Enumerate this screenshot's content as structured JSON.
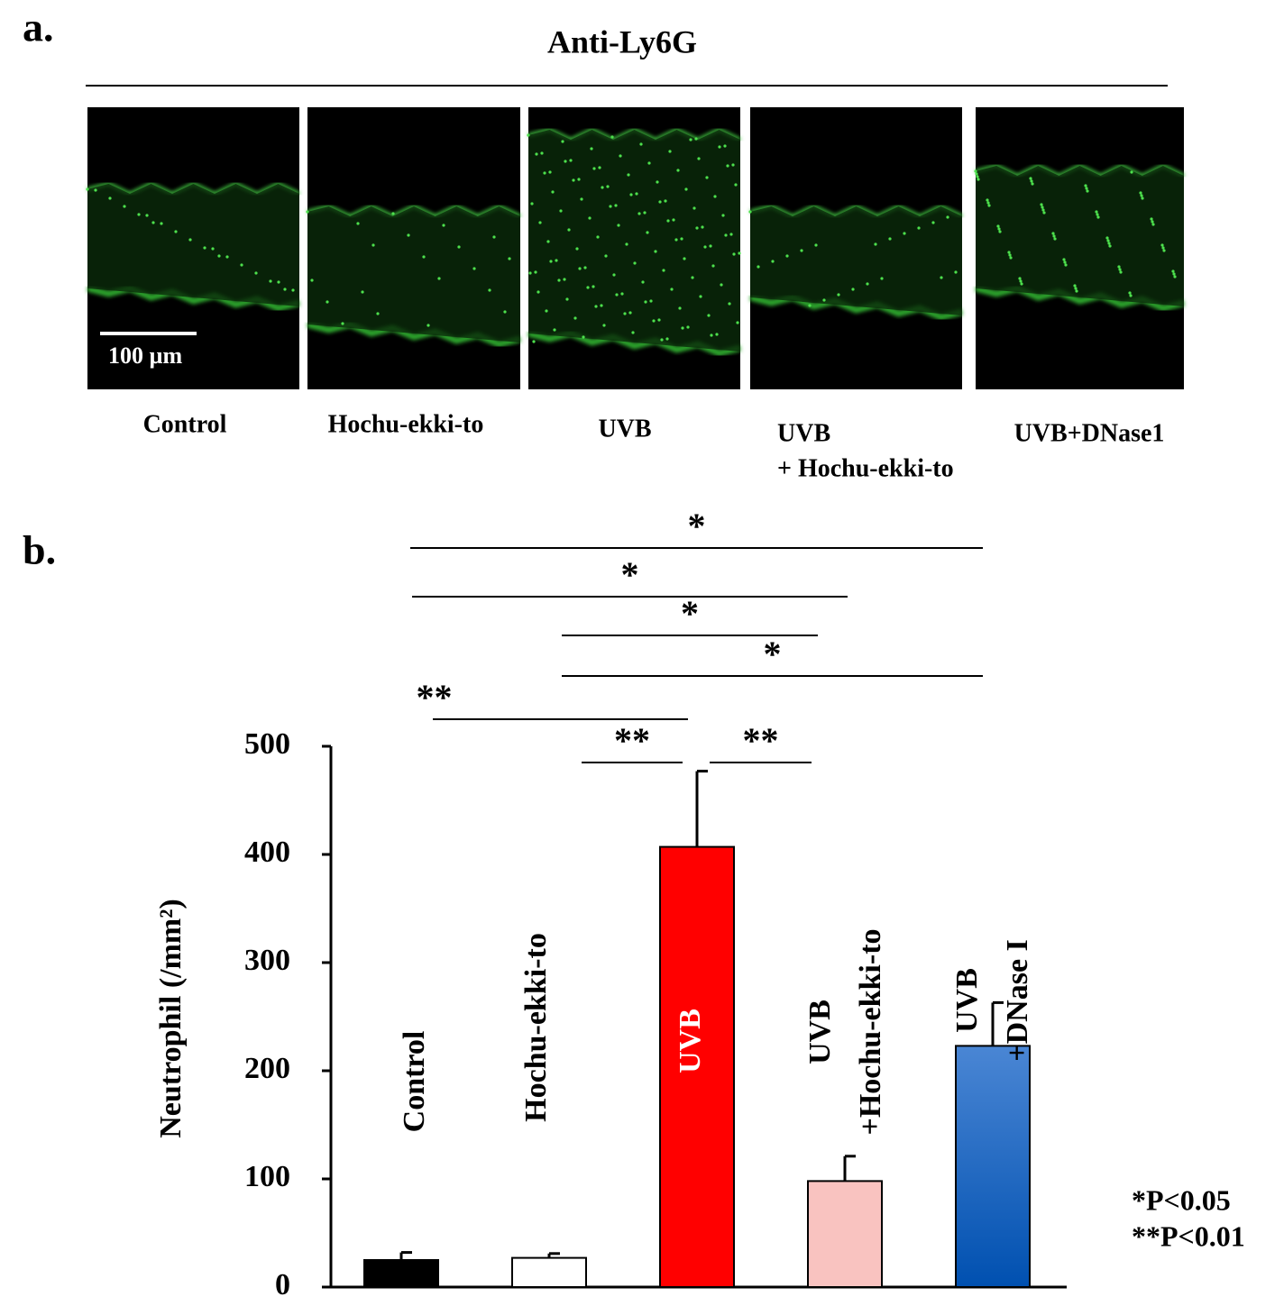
{
  "panel_a": {
    "label": "a.",
    "title": "Anti-Ly6G",
    "scale_bar": "100 µm",
    "images": [
      [
        "Control"
      ],
      [
        "Hochu-ekki-to"
      ],
      [
        "UVB"
      ],
      [
        "UVB",
        "+ Hochu-ekki-to"
      ],
      [
        "UVB+DNase1"
      ]
    ]
  },
  "chart_data": {
    "type": "bar",
    "panel_label": "b.",
    "ylabel": "Neutrophil (/mm²)",
    "categories": [
      [
        "Control"
      ],
      [
        "Hochu-ekki-to"
      ],
      [
        "UVB"
      ],
      [
        "UVB",
        "+Hochu-ekki-to"
      ],
      [
        "UVB",
        "+DNase I"
      ]
    ],
    "values": [
      25,
      27,
      407,
      98,
      223
    ],
    "errors": [
      7,
      4,
      70,
      23,
      40
    ],
    "colors": [
      "#000000",
      "#ffffff",
      "#ff0000",
      "#f9c3c0",
      "#2f74cc"
    ],
    "ylim": [
      0,
      500
    ],
    "yticks": [
      0,
      100,
      200,
      300,
      400,
      500
    ],
    "significance": [
      {
        "label": "*",
        "from": 0,
        "to": 4
      },
      {
        "label": "*",
        "from": 0,
        "to": 3
      },
      {
        "label": "*",
        "from": 1,
        "to": 3
      },
      {
        "label": "*",
        "from": 1,
        "to": 4
      },
      {
        "label": "**",
        "from": 0,
        "to": 2
      },
      {
        "label": "**",
        "from": 1,
        "to": 2
      },
      {
        "label": "**",
        "from": 2,
        "to": 3
      }
    ],
    "notes": [
      "*P<0.05",
      "**P<0.01"
    ]
  }
}
